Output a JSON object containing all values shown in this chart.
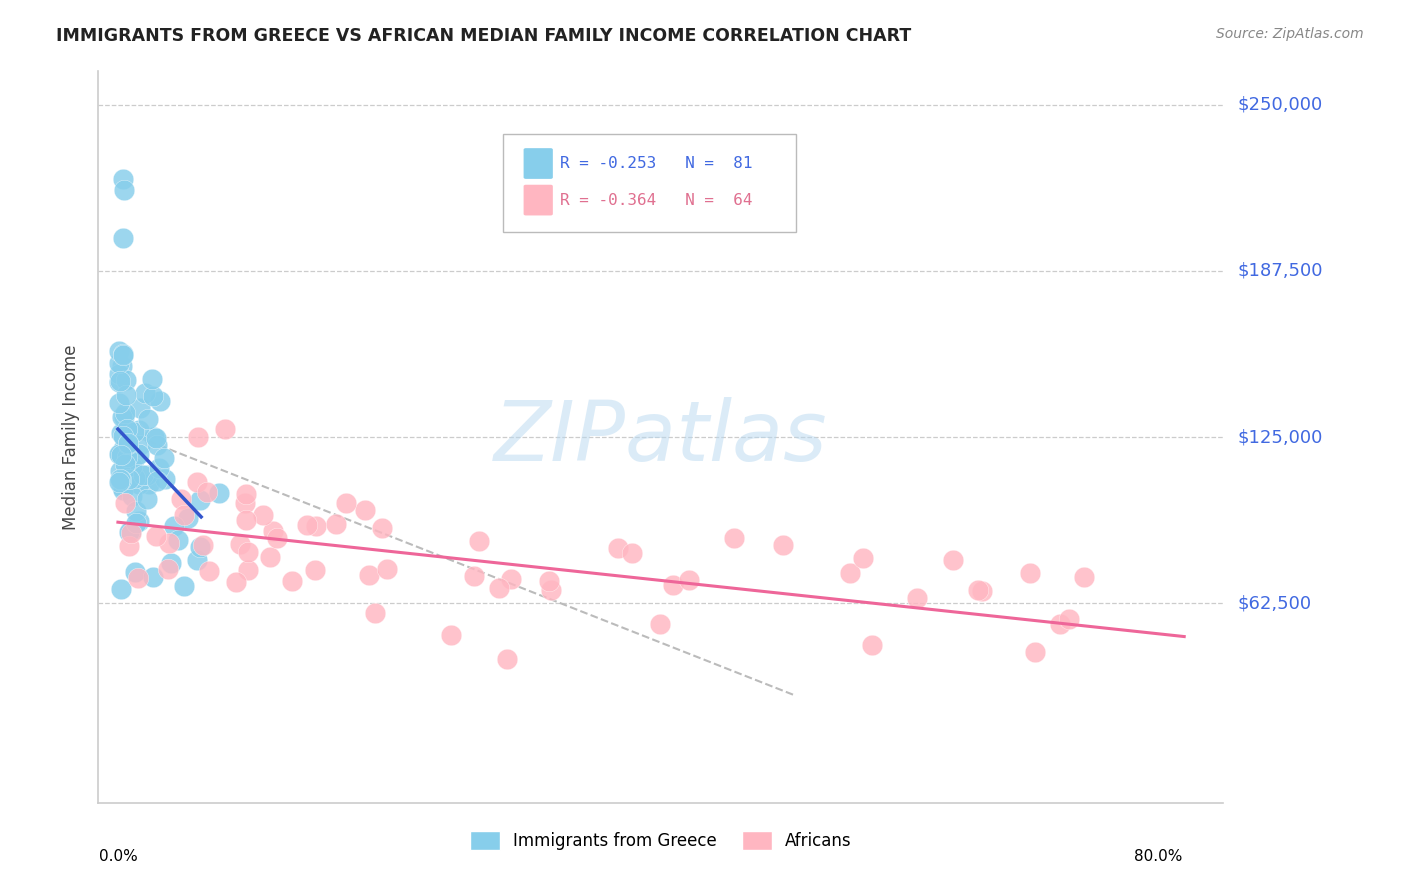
{
  "title": "IMMIGRANTS FROM GREECE VS AFRICAN MEDIAN FAMILY INCOME CORRELATION CHART",
  "source": "Source: ZipAtlas.com",
  "ylabel": "Median Family Income",
  "ytick_labels": [
    "$62,500",
    "$125,000",
    "$187,500",
    "$250,000"
  ],
  "ytick_values": [
    62500,
    125000,
    187500,
    250000
  ],
  "ymax": 262500,
  "ymin": -12500,
  "xmax": 0.85,
  "xmin": -0.015,
  "legend_r1": "R = -0.253   N =  81",
  "legend_r2": "R = -0.364   N =  64",
  "watermark": "ZIPatlas",
  "color_blue": "#87CEEB",
  "color_blue_dark": "#4169E1",
  "color_pink": "#FFB6C1",
  "color_pink_dark": "#E07090",
  "line_blue": "#3355CC",
  "line_pink": "#EE6699",
  "line_gray": "#BBBBBB",
  "grid_color": "#CCCCCC"
}
